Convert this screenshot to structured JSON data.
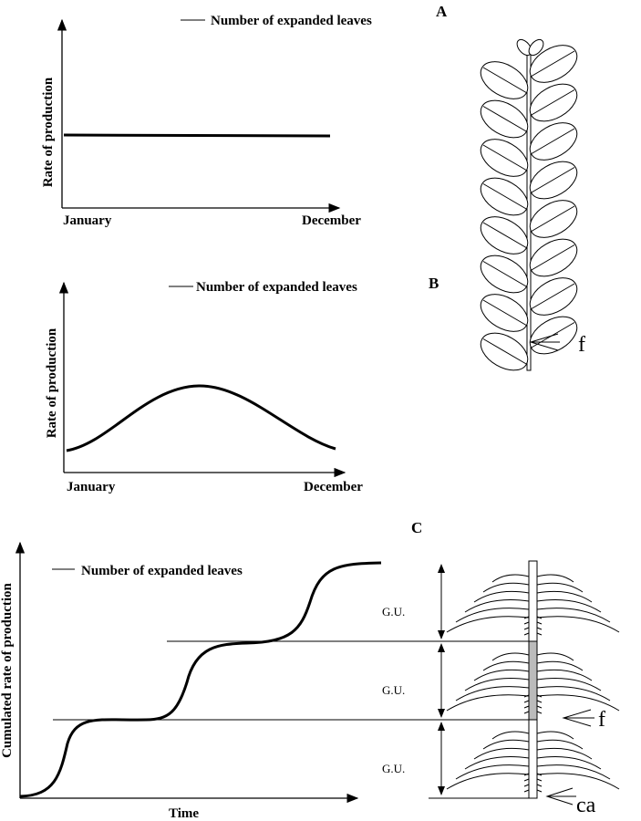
{
  "panels": [
    {
      "label": "A",
      "legend": "Number of expanded leaves",
      "y_label": "Rate of production",
      "x_labels": [
        "January",
        "December"
      ],
      "annotations": [
        "f"
      ]
    },
    {
      "label": "B",
      "legend": "Number of expanded leaves",
      "y_label": "Rate of production",
      "x_labels": [
        "January",
        "December"
      ]
    },
    {
      "label": "C",
      "legend": "Number of expanded leaves",
      "y_label": "Cumulated rate of production",
      "x_label": "Time",
      "growth_units": [
        "G.U.",
        "G.U.",
        "G.U."
      ],
      "annotations": [
        "f",
        "ca"
      ]
    }
  ]
}
